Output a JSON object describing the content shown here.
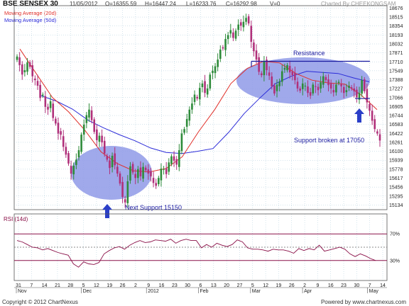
{
  "header": {
    "symbol": "BSE SENSEX 30",
    "date": "11/05/2012",
    "open": "O=16355.59",
    "high": "H=16447.24",
    "low": "L=16233.76",
    "close": "C=16292.98",
    "volume": "V=0",
    "charted_by": "Charted By CHEEKONGSAM"
  },
  "legend": {
    "ma20": "Moving Average (20d)",
    "ma50": "Moving Average (50d)"
  },
  "annotations": {
    "resistance": "Resistance",
    "support_broken": "Support broken at 17050",
    "next_support": "Next Support 15150"
  },
  "rsi_title": "RSI (14d)",
  "footer": {
    "copyright": "Copyright © 2012 ChartNexus",
    "powered": "Powered by www.chartnexus.com"
  },
  "colors": {
    "up": "#2e8b3a",
    "down": "#b0307a",
    "ma20": "#e0302a",
    "ma50": "#2b2bd8",
    "ellipse": "#8f9ae8",
    "arrow": "#2b3fc8",
    "annotation": "#1a1aa0",
    "rsi": "#8a1048",
    "grid": "#a8c8d8"
  },
  "chart_data": [
    {
      "type": "candlestick",
      "title": "BSE SENSEX 30",
      "y_ticks": [
        15134,
        15295,
        15456,
        15617,
        15778,
        15939,
        16100,
        16261,
        16422,
        16583,
        16744,
        16905,
        17066,
        17227,
        17388,
        17549,
        17710,
        17871,
        18032,
        18193,
        18354,
        18515,
        18676
      ],
      "ylim": [
        15050,
        18720
      ],
      "x_day_labels": [
        "31",
        "7",
        "14",
        "21",
        "28",
        "5",
        "12",
        "19",
        "26",
        "2",
        "9",
        "16",
        "23",
        "30",
        "6",
        "13",
        "20",
        "27",
        "5",
        "12",
        "19",
        "26",
        "2",
        "9",
        "16",
        "23",
        "30",
        "7",
        "14"
      ],
      "x_month_labels": [
        "Nov",
        "Dec",
        "2012",
        "Feb",
        "Mar",
        "Apr",
        "May"
      ],
      "candles_close": [
        17805,
        17650,
        17480,
        17560,
        17700,
        17620,
        17450,
        17380,
        17280,
        17060,
        17120,
        16900,
        16850,
        17000,
        16700,
        16600,
        16420,
        16400,
        16180,
        16040,
        15880,
        15700,
        15840,
        15950,
        16120,
        16400,
        16580,
        16750,
        16850,
        16660,
        16450,
        16300,
        16380,
        16260,
        16060,
        15950,
        15800,
        16020,
        15850,
        15700,
        15520,
        15280,
        15180,
        15560,
        15830,
        15720,
        15620,
        15780,
        15650,
        15820,
        15760,
        15700,
        15650,
        15530,
        15480,
        15620,
        15790,
        15780,
        15690,
        15900,
        16010,
        15930,
        15860,
        16120,
        16420,
        16500,
        16680,
        16850,
        16960,
        17120,
        17050,
        17240,
        17320,
        17150,
        17230,
        17480,
        17550,
        17630,
        17750,
        17930,
        17950,
        18120,
        18190,
        18280,
        18140,
        18270,
        18380,
        18360,
        18430,
        18500,
        18400,
        18070,
        17900,
        17750,
        17530,
        17470,
        17720,
        17560,
        17460,
        17270,
        17140,
        17300,
        17350,
        17540,
        17600,
        17650,
        17520,
        17470,
        17380,
        17230,
        17190,
        17320,
        17280,
        17150,
        17100,
        17300,
        17260,
        17200,
        17340,
        17450,
        17380,
        17290,
        17230,
        17160,
        17300,
        17350,
        17270,
        17150,
        17200,
        17280,
        17230,
        17180,
        17070,
        17150,
        17380,
        17180,
        16980,
        16830,
        16650,
        16500,
        16420,
        16293
      ],
      "series": [
        {
          "name": "Moving Average (20d)",
          "values": [
            17940,
            17500,
            17070,
            16810,
            16480,
            16090,
            15880,
            15750,
            15730,
            15790,
            16000,
            16450,
            16850,
            17320,
            17590,
            17720,
            17690,
            17500,
            17380,
            17330,
            17310,
            17120,
            16850
          ]
        },
        {
          "name": "Moving Average (50d)",
          "values": [
            17100,
            17000,
            16860,
            16660,
            16520,
            16400,
            16290,
            16160,
            16080,
            16060,
            16100,
            16150,
            16440,
            16780,
            17060,
            17320,
            17450,
            17540,
            17520,
            17500,
            17420,
            17350
          ]
        }
      ]
    },
    {
      "type": "line",
      "title": "RSI (14d)",
      "y_ticks": [
        30,
        70
      ],
      "ylim": [
        0,
        100
      ],
      "series": [
        {
          "name": "RSI (14d)",
          "values": [
            60,
            58,
            54,
            50,
            49,
            46,
            48,
            45,
            42,
            40,
            38,
            25,
            20,
            28,
            25,
            24,
            27,
            40,
            45,
            49,
            51,
            47,
            53,
            57,
            60,
            57,
            58,
            61,
            60,
            59,
            62,
            56,
            60,
            62,
            60,
            60,
            49,
            54,
            50,
            56,
            53,
            51,
            54,
            61,
            58,
            49,
            47,
            47,
            46,
            44,
            47,
            46,
            46,
            44,
            41,
            48,
            45,
            48,
            46,
            53,
            44,
            46,
            48,
            50,
            47,
            40,
            36,
            40,
            37,
            33,
            30
          ]
        }
      ]
    }
  ]
}
